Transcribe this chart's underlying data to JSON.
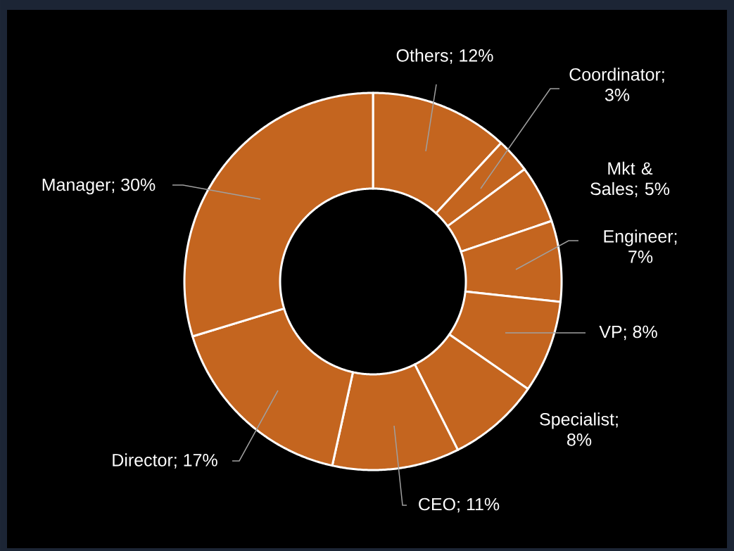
{
  "chart_data": {
    "type": "donut",
    "categories": [
      "Others; 12%",
      "Coordinator; 3%",
      "Mkt & Sales; 5%",
      "Engineer; 7%",
      "VP; 8%",
      "Specialist; 8%",
      "CEO; 11%",
      "Director; 17%",
      "Manager; 30%"
    ],
    "values": [
      12,
      3,
      5,
      7,
      8,
      8,
      11,
      17,
      30
    ],
    "colors": [
      "#c4651f",
      "#c4651f",
      "#c4651f",
      "#c4651f",
      "#c4651f",
      "#c4651f",
      "#c4651f",
      "#c4651f",
      "#c4651f"
    ]
  }
}
